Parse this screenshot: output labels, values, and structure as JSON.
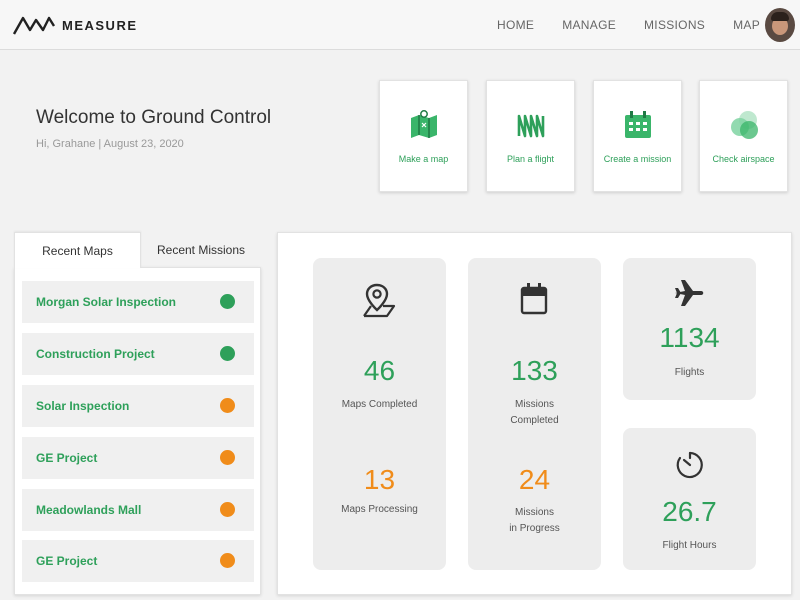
{
  "header": {
    "brand": "MEASURE",
    "nav": [
      "HOME",
      "MANAGE",
      "MISSIONS",
      "MAP"
    ]
  },
  "welcome": {
    "title": "Welcome to Ground Control",
    "subtitle": "Hi, Grahane | August 23, 2020"
  },
  "actions": [
    {
      "label": "Make a map",
      "icon": "map-icon"
    },
    {
      "label": "Plan a flight",
      "icon": "flight-path-icon"
    },
    {
      "label": "Create a mission",
      "icon": "calendar-icon"
    },
    {
      "label": "Check airspace",
      "icon": "airspace-icon"
    }
  ],
  "tabs": {
    "active": "Recent Maps",
    "inactive": "Recent Missions"
  },
  "recent_maps": [
    {
      "name": "Morgan Solar Inspection",
      "status": "complete"
    },
    {
      "name": "Construction Project",
      "status": "complete"
    },
    {
      "name": "Solar Inspection",
      "status": "processing"
    },
    {
      "name": "GE Project",
      "status": "processing"
    },
    {
      "name": "Meadowlands Mall",
      "status": "processing"
    },
    {
      "name": "GE Project",
      "status": "processing"
    }
  ],
  "stats": {
    "maps_completed": {
      "value": "46",
      "label": "Maps Completed"
    },
    "maps_processing": {
      "value": "13",
      "label": "Maps Processing"
    },
    "missions_completed": {
      "value": "133",
      "label_1": "Missions",
      "label_2": "Completed"
    },
    "missions_in_progress": {
      "value": "24",
      "label_1": "Missions",
      "label_2": "in Progress"
    },
    "flights": {
      "value": "1134",
      "label": "Flights"
    },
    "flight_hours": {
      "value": "26.7",
      "label": "Flight Hours"
    }
  },
  "colors": {
    "accent_green": "#2ea05a",
    "accent_orange": "#f08c1a"
  }
}
